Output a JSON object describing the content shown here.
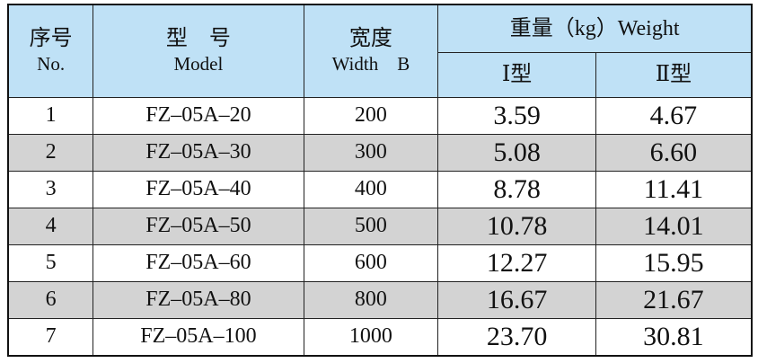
{
  "header": {
    "no": {
      "zh": "序号",
      "en": "No."
    },
    "model": {
      "zh": "型　号",
      "en": "Model"
    },
    "width": {
      "zh": "宽度",
      "en": "Width　B"
    },
    "weight": {
      "title": "重量（kg）Weight",
      "type1": "Ⅰ型",
      "type2": "Ⅱ型"
    }
  },
  "table": {
    "rows": [
      [
        "1",
        "FZ–05A–20",
        "200",
        "3.59",
        "4.67"
      ],
      [
        "2",
        "FZ–05A–30",
        "300",
        "5.08",
        "6.60"
      ],
      [
        "3",
        "FZ–05A–40",
        "400",
        "8.78",
        "11.41"
      ],
      [
        "4",
        "FZ–05A–50",
        "500",
        "10.78",
        "14.01"
      ],
      [
        "5",
        "FZ–05A–60",
        "600",
        "12.27",
        "15.95"
      ],
      [
        "6",
        "FZ–05A–80",
        "800",
        "16.67",
        "21.67"
      ],
      [
        "7",
        "FZ–05A–100",
        "1000",
        "23.70",
        "30.81"
      ]
    ]
  }
}
